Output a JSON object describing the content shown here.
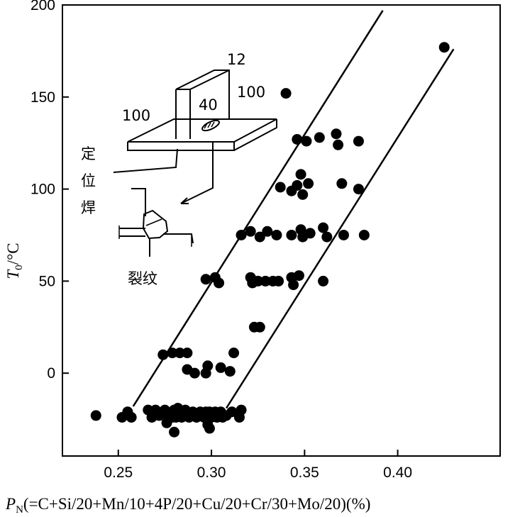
{
  "chart_data": {
    "type": "scatter",
    "title": "",
    "xlabel": {
      "symbol": "P",
      "subscript": "N",
      "rest": "(=C+Si/20+Mn/10+4P/20+Cu/20+Cr/30+Mo/20)(%)"
    },
    "ylabel": {
      "symbol": "T",
      "subscript": "0",
      "rest": "/°C"
    },
    "xlim": [
      0.22,
      0.455
    ],
    "ylim": [
      -45,
      200
    ],
    "xticks": [
      "0.25",
      "0.30",
      "0.35",
      "0.40"
    ],
    "xtick_values": [
      0.25,
      0.3,
      0.35,
      0.4
    ],
    "yticks": [
      "0",
      "50",
      "100",
      "150",
      "200"
    ],
    "ytick_values": [
      0,
      50,
      100,
      150,
      200
    ],
    "grid": false,
    "colors": {
      "points": "#000000",
      "lines": "#000000",
      "background": "#ffffff"
    },
    "boundary_lines": [
      {
        "x": [
          0.258,
          0.392
        ],
        "y": [
          -18,
          197
        ]
      },
      {
        "x": [
          0.308,
          0.43
        ],
        "y": [
          -19,
          176
        ]
      }
    ],
    "points": [
      [
        0.238,
        -23
      ],
      [
        0.252,
        -24
      ],
      [
        0.255,
        -21
      ],
      [
        0.257,
        -24
      ],
      [
        0.266,
        -20
      ],
      [
        0.268,
        -24
      ],
      [
        0.27,
        -20
      ],
      [
        0.272,
        -23
      ],
      [
        0.275,
        -20
      ],
      [
        0.276,
        -27
      ],
      [
        0.279,
        -24
      ],
      [
        0.28,
        -20
      ],
      [
        0.281,
        -24
      ],
      [
        0.282,
        -19
      ],
      [
        0.283,
        -21
      ],
      [
        0.284,
        -24
      ],
      [
        0.286,
        -20
      ],
      [
        0.288,
        -24
      ],
      [
        0.29,
        -21
      ],
      [
        0.292,
        -24
      ],
      [
        0.294,
        -21
      ],
      [
        0.296,
        -24
      ],
      [
        0.297,
        -21
      ],
      [
        0.298,
        -25
      ],
      [
        0.299,
        -21
      ],
      [
        0.3,
        -24
      ],
      [
        0.302,
        -21
      ],
      [
        0.303,
        -24
      ],
      [
        0.305,
        -21
      ],
      [
        0.306,
        -24
      ],
      [
        0.308,
        -23
      ],
      [
        0.311,
        -21
      ],
      [
        0.315,
        -24
      ],
      [
        0.316,
        -20
      ],
      [
        0.277,
        -23
      ],
      [
        0.28,
        -32
      ],
      [
        0.298,
        -28
      ],
      [
        0.299,
        -30
      ],
      [
        0.274,
        10
      ],
      [
        0.279,
        11
      ],
      [
        0.283,
        11
      ],
      [
        0.287,
        11
      ],
      [
        0.287,
        2
      ],
      [
        0.291,
        0
      ],
      [
        0.297,
        0
      ],
      [
        0.298,
        4
      ],
      [
        0.305,
        3
      ],
      [
        0.31,
        1
      ],
      [
        0.312,
        11
      ],
      [
        0.297,
        51
      ],
      [
        0.302,
        52
      ],
      [
        0.304,
        49
      ],
      [
        0.321,
        52
      ],
      [
        0.322,
        49
      ],
      [
        0.325,
        50
      ],
      [
        0.329,
        50
      ],
      [
        0.333,
        50
      ],
      [
        0.336,
        50
      ],
      [
        0.343,
        52
      ],
      [
        0.344,
        48
      ],
      [
        0.347,
        53
      ],
      [
        0.36,
        50
      ],
      [
        0.323,
        25
      ],
      [
        0.326,
        25
      ],
      [
        0.316,
        75
      ],
      [
        0.321,
        77
      ],
      [
        0.326,
        74
      ],
      [
        0.33,
        77
      ],
      [
        0.335,
        75
      ],
      [
        0.343,
        75
      ],
      [
        0.348,
        78
      ],
      [
        0.349,
        74
      ],
      [
        0.353,
        76
      ],
      [
        0.36,
        79
      ],
      [
        0.362,
        74
      ],
      [
        0.371,
        75
      ],
      [
        0.382,
        75
      ],
      [
        0.337,
        101
      ],
      [
        0.343,
        99
      ],
      [
        0.346,
        102
      ],
      [
        0.348,
        108
      ],
      [
        0.349,
        97
      ],
      [
        0.352,
        103
      ],
      [
        0.37,
        103
      ],
      [
        0.379,
        100
      ],
      [
        0.346,
        127
      ],
      [
        0.351,
        126
      ],
      [
        0.358,
        128
      ],
      [
        0.367,
        130
      ],
      [
        0.368,
        124
      ],
      [
        0.379,
        126
      ],
      [
        0.34,
        152
      ],
      [
        0.425,
        177
      ]
    ]
  },
  "inset": {
    "dim_12": "12",
    "dim_100_right": "100",
    "dim_40": "40",
    "dim_100_left": "100",
    "label_tack_weld": [
      "定",
      "位",
      "焊"
    ],
    "label_crack": "裂纹"
  }
}
